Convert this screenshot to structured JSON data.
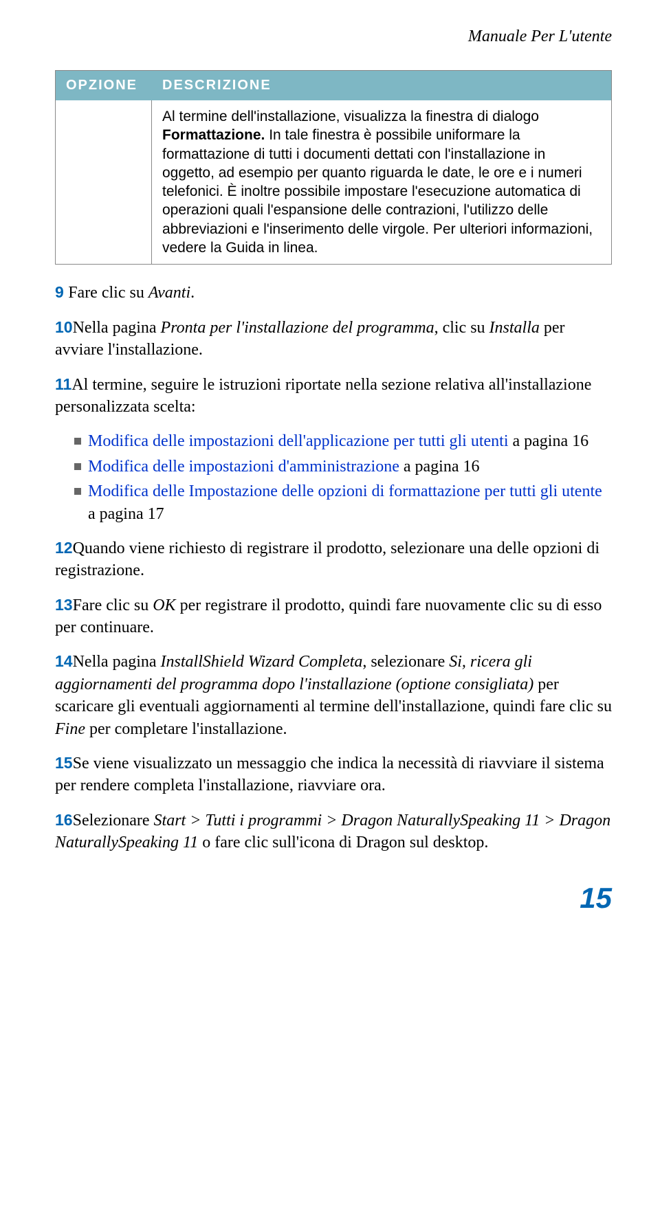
{
  "header": {
    "title": "Manuale Per L'utente"
  },
  "table": {
    "col1_header": "OPZIONE",
    "col2_header": "DESCRIZIONE",
    "body_part1": "Al termine dell'installazione, visualizza la finestra di dialogo ",
    "body_bold": "Formattazione.",
    "body_part2": " In tale finestra è possibile uniformare la formattazione di tutti i documenti dettati con l'installazione in oggetto, ad esempio per quanto riguarda le date, le ore e i numeri telefonici. È inoltre possibile impostare l'esecuzione automatica di operazioni quali l'espansione delle contrazioni, l'utilizzo delle abbreviazioni e l'inserimento delle virgole. Per ulteriori informazioni, vedere la Guida in linea."
  },
  "steps": {
    "s9": {
      "num": "9 ",
      "t1": "Fare clic su ",
      "i1": "Avanti",
      "t2": "."
    },
    "s10": {
      "num": "10",
      "t1": "Nella pagina ",
      "i1": "Pronta per l'installazione del programma",
      "t2": ", clic su ",
      "i2": "Installa",
      "t3": " per avviare l'installazione."
    },
    "s11": {
      "num": "11",
      "t1": "Al termine, seguire le istruzioni riportate nella sezione relativa all'installazione personalizzata scelta:"
    },
    "bullets": {
      "b1": {
        "link": "Modifica delle impostazioni dell'applicazione per tutti gli utenti",
        "rest": " a pagina 16"
      },
      "b2": {
        "link": "Modifica delle impostazioni d'amministrazione",
        "rest": " a pagina 16"
      },
      "b3": {
        "link": "Modifica delle Impostazione delle opzioni di formattazione per tutti gli utente",
        "rest": " a pagina 17"
      }
    },
    "s12": {
      "num": "12",
      "t1": "Quando viene richiesto di registrare il prodotto, selezionare una delle opzioni di registrazione."
    },
    "s13": {
      "num": "13",
      "t1": "Fare clic su ",
      "i1": "OK",
      "t2": " per registrare il prodotto, quindi fare nuovamente clic su di esso per continuare."
    },
    "s14": {
      "num": "14",
      "t1": "Nella pagina ",
      "i1": "InstallShield Wizard Completa",
      "t2": ", selezionare ",
      "i2": "Si, ricera gli aggiornamenti del programma dopo l'installazione (optione consigliata)",
      "t3": " per scaricare gli eventuali aggiornamenti al termine dell'installazione, quindi fare clic su ",
      "i3": "Fine",
      "t4": " per completare l'installazione."
    },
    "s15": {
      "num": "15",
      "t1": "Se viene visualizzato un messaggio che indica la necessità di riavviare il sistema per rendere completa l'installazione, riavviare ora."
    },
    "s16": {
      "num": "16",
      "t1": "Selezionare ",
      "i1": "Start > Tutti i programmi > Dragon NaturallySpeaking 11 > Dragon NaturallySpeaking 11",
      "t2": " o fare clic sull'icona di Dragon sul desktop."
    }
  },
  "page_number": "15",
  "colors": {
    "header_bg": "#7eb7c4",
    "accent_blue": "#0066b3",
    "link_blue": "#0033cc",
    "bullet_gray": "#666666"
  }
}
